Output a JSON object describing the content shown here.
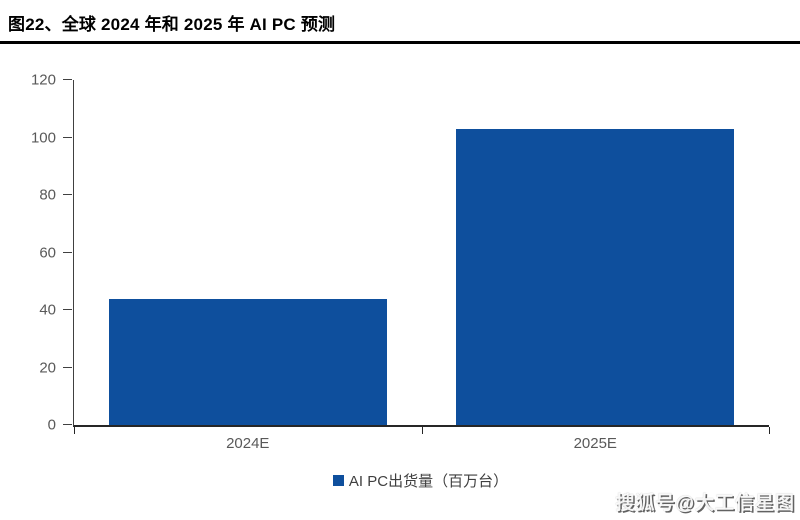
{
  "page": {
    "title": "图22、全球 2024 年和 2025 年 AI PC 预测",
    "watermark": "搜狐号@大工信星图"
  },
  "chart_data": {
    "type": "bar",
    "title": "图22、全球 2024 年和 2025 年 AI PC 预测",
    "categories": [
      "2024E",
      "2025E"
    ],
    "series": [
      {
        "name": "AI PC出货量（百万台）",
        "values": [
          44,
          103
        ]
      }
    ],
    "xlabel": "",
    "ylabel": "",
    "ylim": [
      0,
      120
    ],
    "yticks": [
      0,
      20,
      40,
      60,
      80,
      100,
      120
    ],
    "grid": false,
    "legend_position": "bottom",
    "colors": {
      "bar": "#0E4F9D",
      "axis": "#404040",
      "x_axis": "#262626",
      "tick_label": "#595959",
      "legend_text": "#3f3f3f",
      "title_text": "#000000"
    }
  }
}
